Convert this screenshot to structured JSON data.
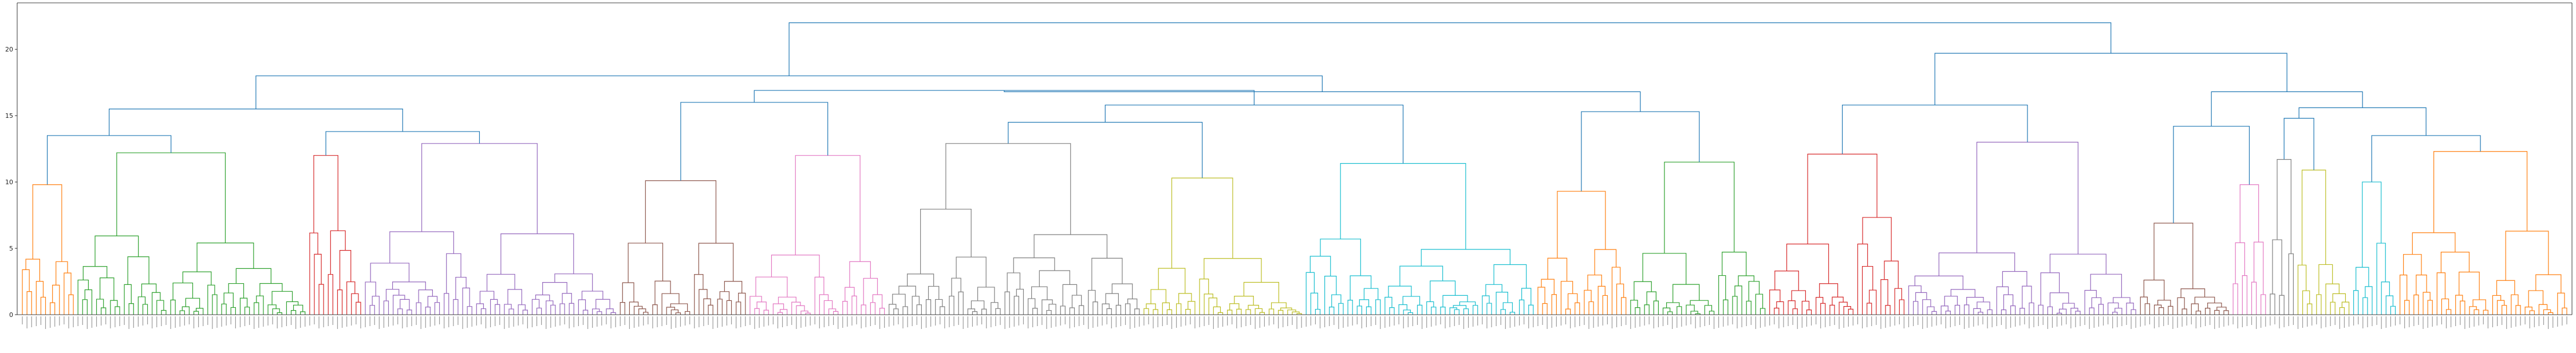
{
  "chart_data": {
    "type": "dendrogram",
    "title": "",
    "xlabel": "",
    "ylabel": "",
    "ylim": [
      0,
      23.5
    ],
    "y_ticks": [
      0,
      5,
      10,
      15,
      20
    ],
    "y_tick_labels": [
      "0",
      "5",
      "10",
      "15",
      "20"
    ],
    "grid": false,
    "n_leaves": 560,
    "colors": {
      "above_threshold": "#1f77b4",
      "palette": [
        "#ff7f0e",
        "#2ca02c",
        "#d62728",
        "#9467bd",
        "#8c564b",
        "#e377c2",
        "#7f7f7f",
        "#bcbd22",
        "#17becf"
      ]
    },
    "top_links": [
      {
        "left": 0.0,
        "right": 0.0,
        "height": 22.0,
        "note": "root"
      },
      {
        "height": 18.0
      },
      {
        "height": 19.5
      },
      {
        "height": 16.8
      },
      {
        "height": 15.5
      },
      {
        "height": 16.5
      },
      {
        "height": 14.3
      },
      {
        "height": 13.5
      },
      {
        "height": 15.8
      },
      {
        "height": 15.6
      }
    ],
    "clusters": [
      {
        "color": "#ff7f0e",
        "leaves": 12,
        "height": 9.8
      },
      {
        "color": "#2ca02c",
        "leaves": 50,
        "height": 12.2
      },
      {
        "color": "#d62728",
        "leaves": 12,
        "height": 12.0
      },
      {
        "color": "#9467bd",
        "leaves": 55,
        "height": 12.9
      },
      {
        "color": "#8c564b",
        "leaves": 28,
        "height": 10.1
      },
      {
        "color": "#e377c2",
        "leaves": 30,
        "height": 12.0
      },
      {
        "color": "#7f7f7f",
        "leaves": 55,
        "height": 12.9
      },
      {
        "color": "#bcbd22",
        "leaves": 35,
        "height": 10.3
      },
      {
        "color": "#17becf",
        "leaves": 50,
        "height": 11.4
      },
      {
        "color": "#ff7f0e",
        "leaves": 20,
        "height": 9.3
      },
      {
        "color": "#2ca02c",
        "leaves": 30,
        "height": 11.5
      },
      {
        "color": "#d62728",
        "leaves": 30,
        "height": 12.1
      },
      {
        "color": "#9467bd",
        "leaves": 50,
        "height": 13.0
      },
      {
        "color": "#8c564b",
        "leaves": 20,
        "height": 6.9
      },
      {
        "color": "#e377c2",
        "leaves": 8,
        "height": 9.8
      },
      {
        "color": "#7f7f7f",
        "leaves": 6,
        "height": 11.7
      },
      {
        "color": "#bcbd22",
        "leaves": 12,
        "height": 10.9
      },
      {
        "color": "#17becf",
        "leaves": 10,
        "height": 10.0
      },
      {
        "color": "#ff7f0e",
        "leaves": 37,
        "height": 12.3
      }
    ]
  }
}
